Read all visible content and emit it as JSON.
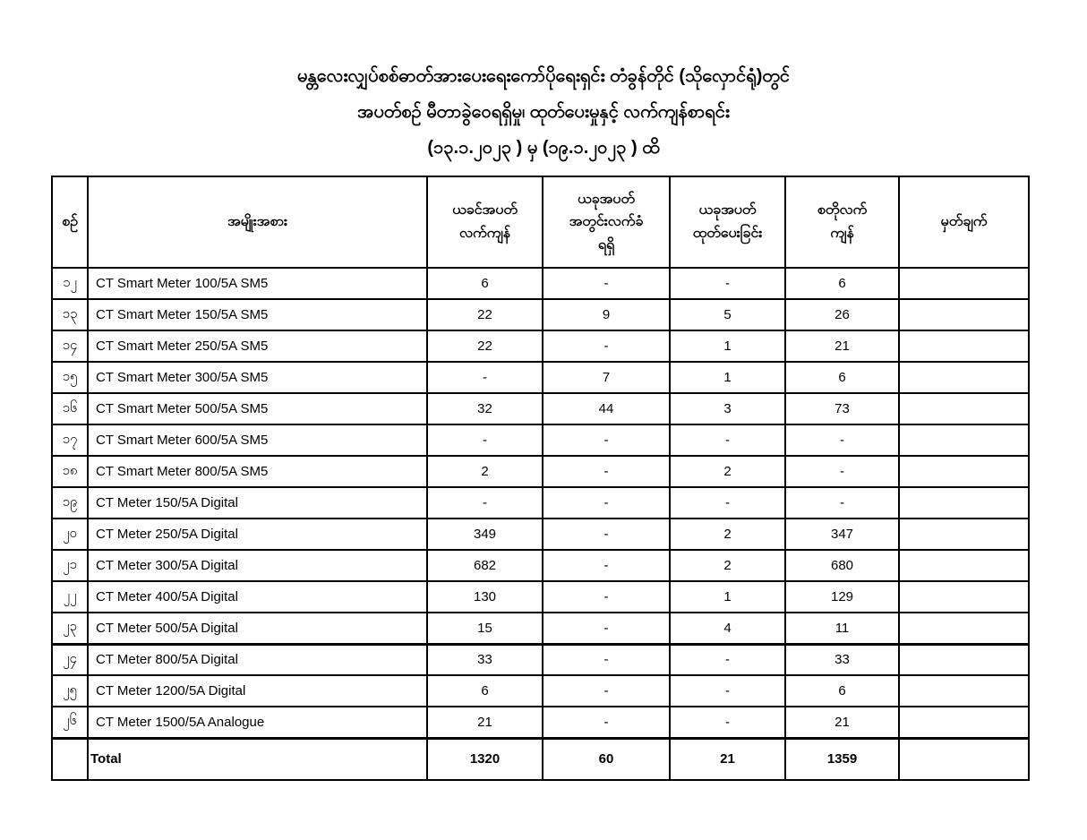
{
  "page": {
    "title_lines": [
      "မန္တလေးလျှပ်စစ်ဓာတ်အားပေးရေးကော်ပိုရေးရှင်း တံခွန်တိုင် (သိုလှောင်ရုံ)တွင်",
      "အပတ်စဉ် မီတာခွဲဝေရရှိမှု၊ ထုတ်ပေးမှုနှင့် လက်ကျန်စာရင်း",
      "(၁၃.၁.၂၀၂၃ ) မှ (၁၉.၁.၂၀၂၃ ) ထိ"
    ]
  },
  "table": {
    "headers": [
      "စဉ်",
      "အမျိုးအစား",
      "ယခင်အပတ်\nလက်ကျန်",
      "ယခုအပတ်\nအတွင်းလက်ခံ\nရရှိ",
      "ယခုအပတ်\nထုတ်ပေးခြင်း",
      "စတိုလက်\nကျန်",
      "မှတ်ချက်"
    ],
    "rows": [
      {
        "no": "၁၂",
        "item": "CT Smart Meter 100/5A SM5",
        "prev": "6",
        "received": "-",
        "issued": "-",
        "store": "6",
        "remark": ""
      },
      {
        "no": "၁၃",
        "item": "CT Smart Meter 150/5A SM5",
        "prev": "22",
        "received": "9",
        "issued": "5",
        "store": "26",
        "remark": ""
      },
      {
        "no": "၁၄",
        "item": "CT Smart Meter 250/5A SM5",
        "prev": "22",
        "received": "-",
        "issued": "1",
        "store": "21",
        "remark": ""
      },
      {
        "no": "၁၅",
        "item": "CT Smart Meter 300/5A SM5",
        "prev": "-",
        "received": "7",
        "issued": "1",
        "store": "6",
        "remark": ""
      },
      {
        "no": "၁၆",
        "item": "CT Smart Meter 500/5A SM5",
        "prev": "32",
        "received": "44",
        "issued": "3",
        "store": "73",
        "remark": ""
      },
      {
        "no": "၁၇",
        "item": "CT Smart Meter 600/5A SM5",
        "prev": "-",
        "received": "-",
        "issued": "-",
        "store": "-",
        "remark": ""
      },
      {
        "no": "၁၈",
        "item": "CT Smart Meter 800/5A SM5",
        "prev": "2",
        "received": "-",
        "issued": "2",
        "store": "-",
        "remark": ""
      },
      {
        "no": "၁၉",
        "item": "CT Meter 150/5A Digital",
        "prev": "-",
        "received": "-",
        "issued": "-",
        "store": "-",
        "remark": ""
      },
      {
        "no": "၂၀",
        "item": "CT Meter 250/5A Digital",
        "prev": "349",
        "received": "-",
        "issued": "2",
        "store": "347",
        "remark": ""
      },
      {
        "no": "၂၁",
        "item": "CT Meter 300/5A Digital",
        "prev": "682",
        "received": "-",
        "issued": "2",
        "store": "680",
        "remark": ""
      },
      {
        "no": "၂၂",
        "item": "CT Meter 400/5A Digital",
        "prev": "130",
        "received": "-",
        "issued": "1",
        "store": "129",
        "remark": ""
      },
      {
        "no": "၂၃",
        "item": "CT Meter 500/5A Digital",
        "prev": "15",
        "received": "-",
        "issued": "4",
        "store": "11",
        "remark": ""
      },
      {
        "no": "၂၄",
        "item": "CT Meter 800/5A Digital",
        "prev": "33",
        "received": "-",
        "issued": "-",
        "store": "33",
        "remark": ""
      },
      {
        "no": "၂၅",
        "item": "CT Meter 1200/5A Digital",
        "prev": "6",
        "received": "-",
        "issued": "-",
        "store": "6",
        "remark": ""
      },
      {
        "no": "၂၆",
        "item": "CT Meter 1500/5A Analogue",
        "prev": "21",
        "received": "-",
        "issued": "-",
        "store": "21",
        "remark": ""
      }
    ],
    "total": {
      "label": "Total",
      "prev": "1320",
      "received": "60",
      "issued": "21",
      "store": "1359",
      "remark": ""
    }
  }
}
